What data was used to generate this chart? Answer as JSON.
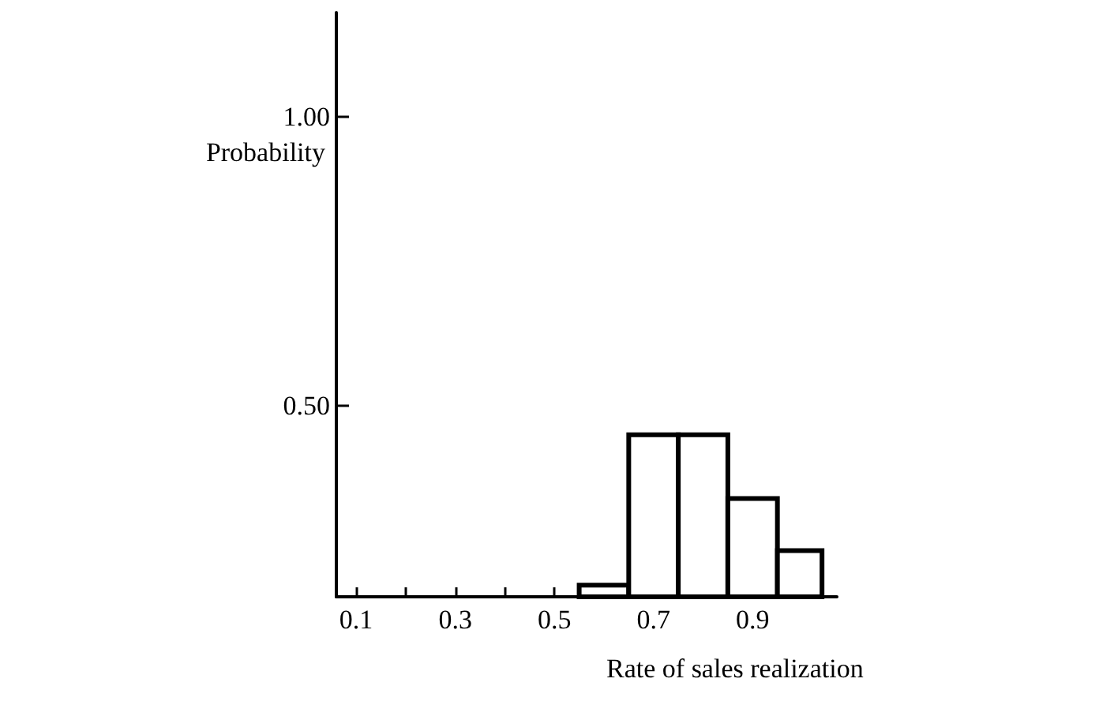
{
  "chart_data": {
    "type": "histogram",
    "xlabel": "Rate of sales realization",
    "ylabel": "Probability",
    "bins": [
      0.55,
      0.65,
      0.75,
      0.85,
      0.95,
      1.04
    ],
    "values": [
      0.19,
      0.45,
      0.45,
      0.34,
      0.25
    ],
    "color": "#000000",
    "xlim": [
      0.06,
      1.07
    ],
    "xticks": [
      0.1,
      {
        "value": 0.2,
        "label": null
      },
      0.3,
      {
        "value": 0.4,
        "label": null
      },
      0.5,
      {
        "value": 0.6,
        "label": null
      },
      0.7,
      {
        "value": 0.8,
        "label": null
      },
      0.9,
      {
        "value": 1.0,
        "label": null
      }
    ],
    "ylim": [
      0.17,
      1.18
    ],
    "yticks": [
      {
        "value": 0.5,
        "label": "0.50"
      },
      {
        "value": 1.0,
        "label": "1.00"
      }
    ],
    "grid": false
  }
}
